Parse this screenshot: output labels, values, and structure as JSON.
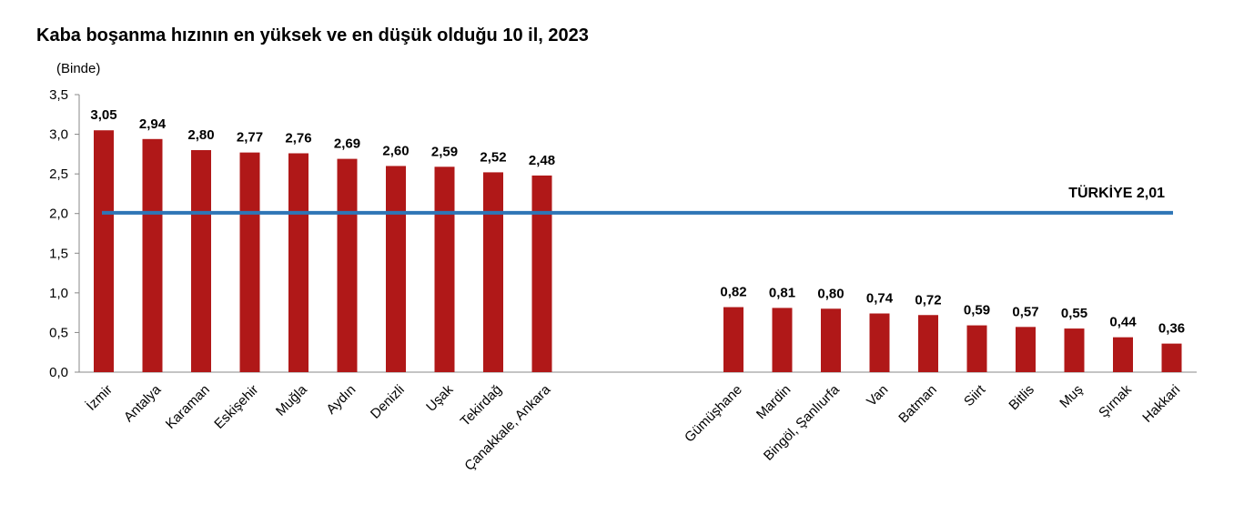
{
  "chart_data": {
    "type": "bar",
    "title": "Kaba boşanma hızının en yüksek ve en düşük olduğu 10 il, 2023",
    "unit_label": "(Binde)",
    "ylim": [
      0,
      3.5
    ],
    "yticks": [
      "0,0",
      "0,5",
      "1,0",
      "1,5",
      "2,0",
      "2,5",
      "3,0",
      "3,5"
    ],
    "grid": false,
    "legend": "none",
    "bar_color": "#b01818",
    "reference_line": {
      "label": "TÜRKİYE 2,01",
      "value": 2.01,
      "color": "#2e75b6"
    },
    "groups": [
      {
        "categories": [
          "İzmir",
          "Antalya",
          "Karaman",
          "Eskişehir",
          "Muğla",
          "Aydın",
          "Denizli",
          "Uşak",
          "Tekirdağ",
          "Çanakkale, Ankara"
        ],
        "values": [
          3.05,
          2.94,
          2.8,
          2.77,
          2.76,
          2.69,
          2.6,
          2.59,
          2.52,
          2.48
        ],
        "value_labels": [
          "3,05",
          "2,94",
          "2,80",
          "2,77",
          "2,76",
          "2,69",
          "2,60",
          "2,59",
          "2,52",
          "2,48"
        ]
      },
      {
        "categories": [
          "Gümüşhane",
          "Mardin",
          "Bingöl, Şanlıurfa",
          "Van",
          "Batman",
          "Siirt",
          "Bitlis",
          "Muş",
          "Şırnak",
          "Hakkari"
        ],
        "values": [
          0.82,
          0.81,
          0.8,
          0.74,
          0.72,
          0.59,
          0.57,
          0.55,
          0.44,
          0.36
        ],
        "value_labels": [
          "0,82",
          "0,81",
          "0,80",
          "0,74",
          "0,72",
          "0,59",
          "0,57",
          "0,55",
          "0,44",
          "0,36"
        ]
      }
    ]
  }
}
